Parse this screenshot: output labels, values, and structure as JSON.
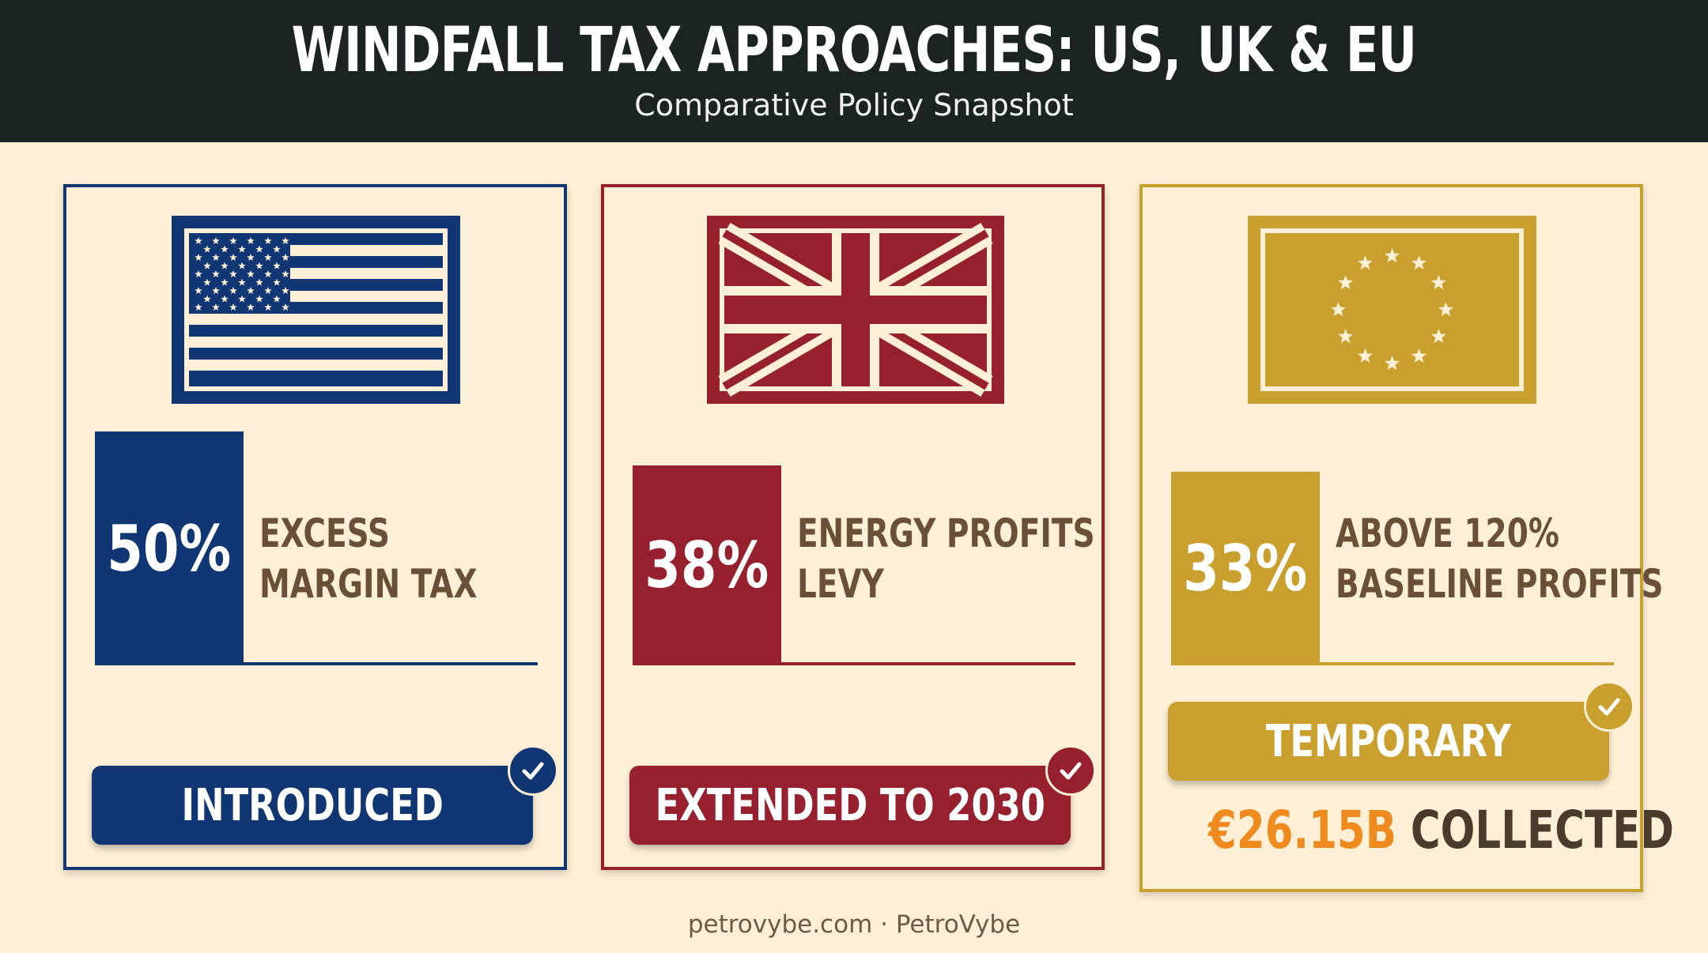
{
  "header": {
    "title": "WINDFALL TAX APPROACHES: US, UK & EU",
    "subtitle": "Comparative Policy Snapshot"
  },
  "cards": [
    {
      "region": "US",
      "flag_icon": "us-flag-icon",
      "rate": "50%",
      "label_line1": "EXCESS",
      "label_line2": "MARGIN TAX",
      "status": "INTRODUCED",
      "accent": "#103773"
    },
    {
      "region": "UK",
      "flag_icon": "uk-flag-icon",
      "rate": "38%",
      "label_line1": "ENERGY PROFITS",
      "label_line2": "LEVY",
      "status": "EXTENDED TO 2030",
      "accent": "#97202f"
    },
    {
      "region": "EU",
      "flag_icon": "eu-flag-icon",
      "rate": "33%",
      "label_line1": "ABOVE 120%",
      "label_line2": "BASELINE PROFITS",
      "status": "TEMPORARY",
      "collected_amount": "€26.15B",
      "collected_word": "COLLECTED",
      "accent": "#c9a02e"
    }
  ],
  "footer": {
    "text": "petrovybe.com · PetroVybe"
  }
}
